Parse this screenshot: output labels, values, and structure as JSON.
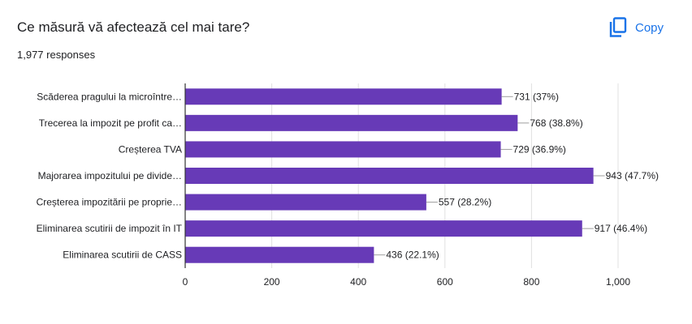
{
  "header": {
    "title": "Ce măsură vă afectează cel mai tare?",
    "responses": "1,977 responses",
    "copy_label": "Copy",
    "copy_icon": "copy-icon"
  },
  "colors": {
    "bar": "#673ab7",
    "accent": "#1a73e8",
    "grid": "#e0e0e0",
    "axis": "#333333"
  },
  "chart_data": {
    "type": "bar",
    "orientation": "horizontal",
    "categories": [
      "Scăderea pragului la microîntre…",
      "Trecerea la impozit pe profit ca…",
      "Creșterea TVA",
      "Majorarea impozitului pe divide…",
      "Creșterea impozitării pe proprie…",
      "Eliminarea scutirii de impozit în IT",
      "Eliminarea scutirii de CASS"
    ],
    "values": [
      731,
      768,
      729,
      943,
      557,
      917,
      436
    ],
    "labels": [
      "731 (37%)",
      "768 (38.8%)",
      "729 (36.9%)",
      "943 (47.7%)",
      "557 (28.2%)",
      "917 (46.4%)",
      "436 (22.1%)"
    ],
    "xticks": [
      0,
      200,
      400,
      600,
      800,
      1000
    ],
    "xtick_labels": [
      "0",
      "200",
      "400",
      "600",
      "800",
      "1,000"
    ],
    "xlim": [
      0,
      1000
    ],
    "grid": true,
    "legend": "none"
  }
}
